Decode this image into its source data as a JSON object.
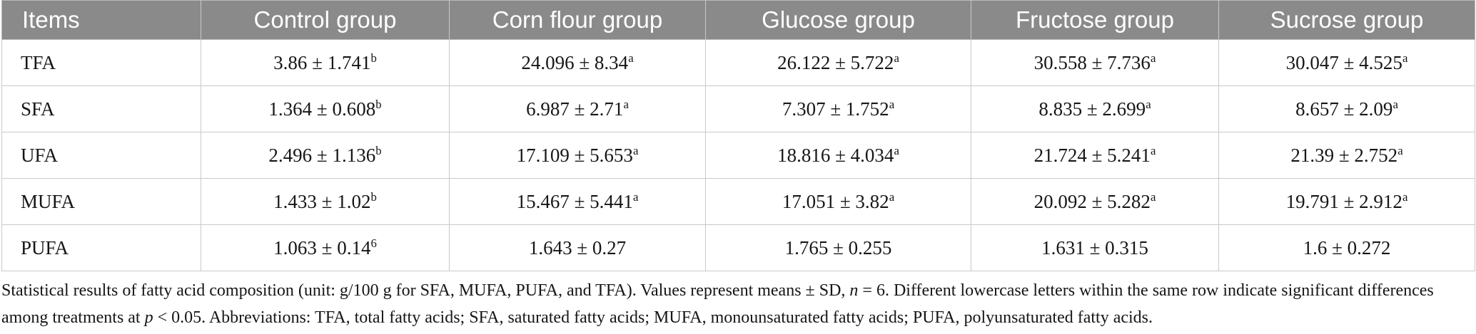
{
  "colors": {
    "header_bg": "#8a8a8a",
    "header_text": "#ffffff",
    "border": "#b9b9b9",
    "border_light": "#c9c9c9",
    "body_text": "#161616"
  },
  "table": {
    "columns": [
      "Items",
      "Control group",
      "Corn flour group",
      "Glucose group",
      "Fructose group",
      "Sucrose group"
    ],
    "rows": [
      {
        "item": "TFA",
        "cells": [
          {
            "value": "3.86 ± 1.741",
            "sup": "b"
          },
          {
            "value": "24.096 ± 8.34",
            "sup": "a"
          },
          {
            "value": "26.122 ± 5.722",
            "sup": "a"
          },
          {
            "value": "30.558 ± 7.736",
            "sup": "a"
          },
          {
            "value": "30.047 ± 4.525",
            "sup": "a"
          }
        ]
      },
      {
        "item": "SFA",
        "cells": [
          {
            "value": "1.364 ± 0.608",
            "sup": "b"
          },
          {
            "value": "6.987 ± 2.71",
            "sup": "a"
          },
          {
            "value": "7.307 ± 1.752",
            "sup": "a"
          },
          {
            "value": "8.835 ± 2.699",
            "sup": "a"
          },
          {
            "value": "8.657 ± 2.09",
            "sup": "a"
          }
        ]
      },
      {
        "item": "UFA",
        "cells": [
          {
            "value": "2.496 ± 1.136",
            "sup": "b"
          },
          {
            "value": "17.109 ± 5.653",
            "sup": "a"
          },
          {
            "value": "18.816 ± 4.034",
            "sup": "a"
          },
          {
            "value": "21.724 ± 5.241",
            "sup": "a"
          },
          {
            "value": "21.39 ± 2.752",
            "sup": "a"
          }
        ]
      },
      {
        "item": "MUFA",
        "cells": [
          {
            "value": "1.433 ± 1.02",
            "sup": "b"
          },
          {
            "value": "15.467 ± 5.441",
            "sup": "a"
          },
          {
            "value": "17.051 ± 3.82",
            "sup": "a"
          },
          {
            "value": "20.092 ± 5.282",
            "sup": "a"
          },
          {
            "value": "19.791 ± 2.912",
            "sup": "a"
          }
        ]
      },
      {
        "item": "PUFA",
        "cells": [
          {
            "value": "1.063 ± 0.14",
            "sup": "6"
          },
          {
            "value": "1.643 ± 0.27",
            "sup": ""
          },
          {
            "value": "1.765 ± 0.255",
            "sup": ""
          },
          {
            "value": "1.631 ± 0.315",
            "sup": ""
          },
          {
            "value": "1.6 ± 0.272",
            "sup": ""
          }
        ]
      }
    ]
  },
  "footnote": {
    "part1": "Statistical results of fatty acid composition (unit: g/100 g for SFA, MUFA, PUFA, and TFA). Values represent means ± SD, ",
    "n_italic": "n",
    "part2": " = 6. Different lowercase letters within the same row indicate significant differences among treatments at ",
    "p_italic": "p",
    "part3": " < 0.05. Abbreviations: TFA, total fatty acids; SFA, saturated fatty acids; MUFA, monounsaturated fatty acids; PUFA, polyunsaturated fatty acids."
  }
}
